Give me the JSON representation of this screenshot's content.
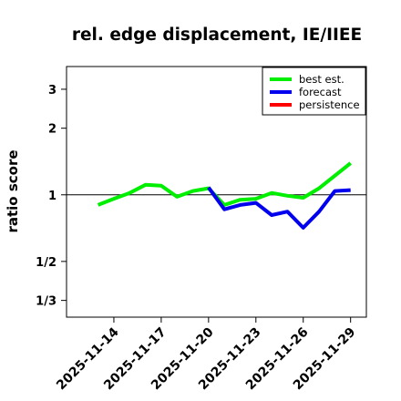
{
  "chart_data": {
    "type": "line",
    "title": "rel. edge displacement, IE/IIEE",
    "ylabel": "ratio score",
    "xlabel": "",
    "y_scale": "log",
    "ylim": [
      0.28,
      3.8
    ],
    "xlim": [
      "2025-11-11",
      "2025-11-30"
    ],
    "y_ticks": [
      {
        "value": 0.3333,
        "label": "1/3"
      },
      {
        "value": 0.5,
        "label": "1/2"
      },
      {
        "value": 1,
        "label": "1"
      },
      {
        "value": 2,
        "label": "2"
      },
      {
        "value": 3,
        "label": "3"
      }
    ],
    "x_ticks": [
      "2025-11-14",
      "2025-11-17",
      "2025-11-20",
      "2025-11-23",
      "2025-11-26",
      "2025-11-29"
    ],
    "highlight_tick": "2025-11-20",
    "highlight_color": "#228B22",
    "reference_line": 1,
    "grid": false,
    "legend_position": "top-right",
    "series": [
      {
        "name": "best est.",
        "color": "#00ee00",
        "points": [
          {
            "x": "2025-11-13",
            "y": 0.9
          },
          {
            "x": "2025-11-14",
            "y": 0.96
          },
          {
            "x": "2025-11-15",
            "y": 1.02
          },
          {
            "x": "2025-11-16",
            "y": 1.11
          },
          {
            "x": "2025-11-17",
            "y": 1.1
          },
          {
            "x": "2025-11-18",
            "y": 0.98
          },
          {
            "x": "2025-11-19",
            "y": 1.04
          },
          {
            "x": "2025-11-20",
            "y": 1.07
          },
          {
            "x": "2025-11-21",
            "y": 0.9
          },
          {
            "x": "2025-11-22",
            "y": 0.95
          },
          {
            "x": "2025-11-23",
            "y": 0.96
          },
          {
            "x": "2025-11-24",
            "y": 1.02
          },
          {
            "x": "2025-11-25",
            "y": 0.99
          },
          {
            "x": "2025-11-26",
            "y": 0.97
          },
          {
            "x": "2025-11-27",
            "y": 1.07
          },
          {
            "x": "2025-11-28",
            "y": 1.22
          },
          {
            "x": "2025-11-29",
            "y": 1.39
          }
        ]
      },
      {
        "name": "forecast",
        "color": "#0000ee",
        "points": [
          {
            "x": "2025-11-20",
            "y": 1.08
          },
          {
            "x": "2025-11-21",
            "y": 0.86
          },
          {
            "x": "2025-11-22",
            "y": 0.9
          },
          {
            "x": "2025-11-23",
            "y": 0.92
          },
          {
            "x": "2025-11-24",
            "y": 0.81
          },
          {
            "x": "2025-11-25",
            "y": 0.84
          },
          {
            "x": "2025-11-26",
            "y": 0.71
          },
          {
            "x": "2025-11-27",
            "y": 0.84
          },
          {
            "x": "2025-11-28",
            "y": 1.04
          },
          {
            "x": "2025-11-29",
            "y": 1.05
          }
        ]
      },
      {
        "name": "persistence",
        "color": "#ff0000",
        "points": []
      }
    ]
  }
}
